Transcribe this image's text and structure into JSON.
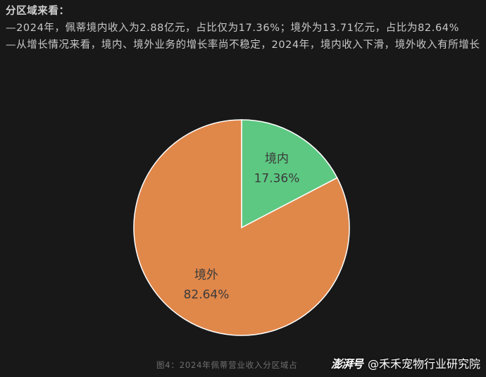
{
  "article": {
    "heading": "分区域来看：",
    "para1": "—2024年，佩蒂境内收入为2.88亿元，占比仅为17.36%；境外为13.71亿元，占比为82.64%",
    "para2": "—从增长情况来看，境内、境外业务的增长率尚不稳定，2024年，境内收入下滑，境外收入有所增长"
  },
  "chart_data": {
    "type": "pie",
    "title": "",
    "categories": [
      "境内",
      "境外"
    ],
    "values": [
      17.36,
      82.64
    ],
    "labels": [
      "17.36%",
      "82.64%"
    ],
    "colors": [
      "#5dc882",
      "#e0874a"
    ],
    "legend": "none"
  },
  "caption": "图4：2024年佩蒂营业收入分区域占",
  "watermark": {
    "logo": "澎湃号",
    "account": "@禾禾宠物行业研究院"
  }
}
